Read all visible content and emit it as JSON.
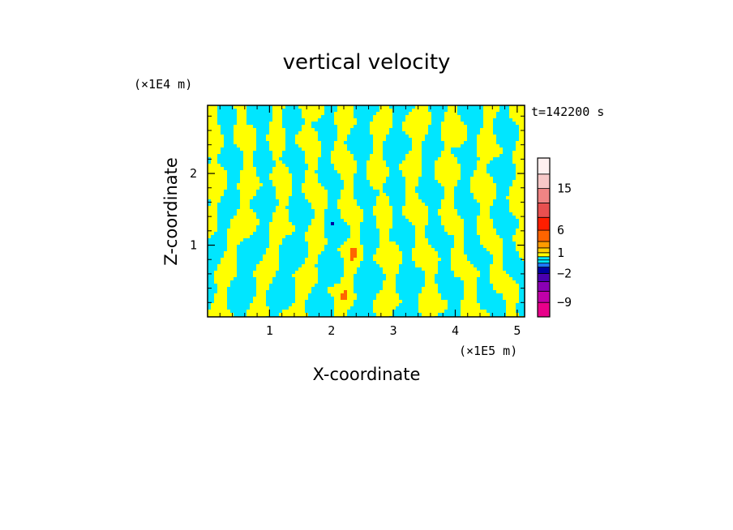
{
  "chart_data": {
    "type": "heatmap",
    "title": "vertical velocity",
    "xlabel": "X-coordinate",
    "ylabel": "Z-coordinate",
    "x_unit": "(×1E5 m)",
    "y_unit": "(×1E4 m)",
    "time_label": "t=142200 s",
    "xlim": [
      0,
      5.12
    ],
    "ylim": [
      0,
      2.95
    ],
    "x_ticks": [
      1,
      2,
      3,
      4,
      5
    ],
    "y_ticks": [
      1,
      2
    ],
    "colorbar": {
      "boundaries": [
        -12,
        -9,
        -6,
        -4,
        -2,
        -1,
        -0.5,
        0,
        0.5,
        1,
        2,
        4,
        6,
        9,
        12,
        15,
        20,
        25
      ],
      "colors": [
        "#e8008a",
        "#c000a8",
        "#8a00b4",
        "#4a00b0",
        "#0000a0",
        "#1e78ff",
        "#00e6ff",
        "#00e6ff",
        "#ffff00",
        "#ffd000",
        "#ff9b00",
        "#ff6400",
        "#ff1e00",
        "#e85050",
        "#f08484",
        "#f7c8c8",
        "#fff0f0"
      ],
      "tick_labels": [
        "15",
        "6",
        "1",
        "−2",
        "−9"
      ],
      "tick_values": [
        15,
        6,
        1,
        -2,
        -9
      ]
    },
    "field_colors": {
      "positive": "#ffff00",
      "negative": "#00e6ff",
      "strong_positive": "#ff6400",
      "strong_negative": "#0000a0"
    }
  }
}
